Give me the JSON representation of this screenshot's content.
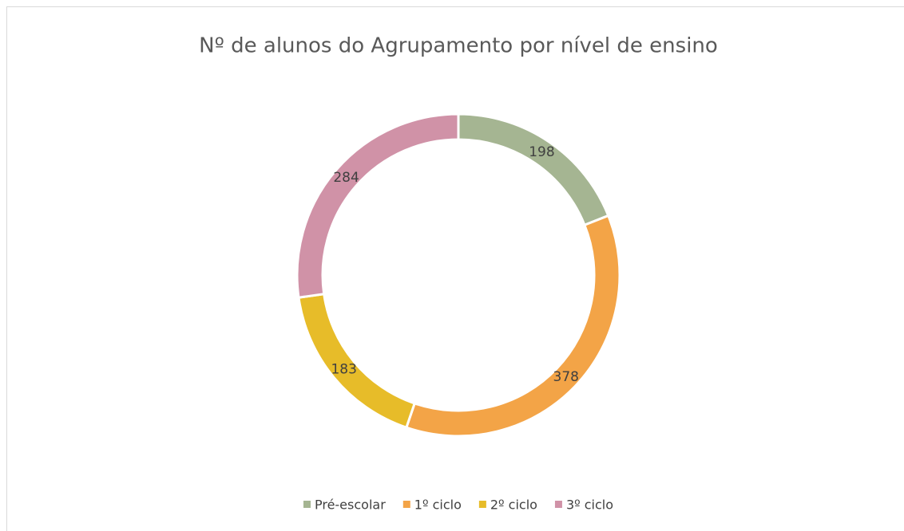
{
  "chart_data": {
    "type": "donut",
    "title": "Nº de alunos do Agrupamento por nível de ensino",
    "categories": [
      "Pré-escolar",
      "1º ciclo",
      "2º ciclo",
      "3º ciclo"
    ],
    "values": [
      198,
      378,
      183,
      284
    ],
    "colors": [
      "#a5b592",
      "#f3a447",
      "#e7bc29",
      "#d092a7"
    ],
    "legend": "bottom"
  }
}
